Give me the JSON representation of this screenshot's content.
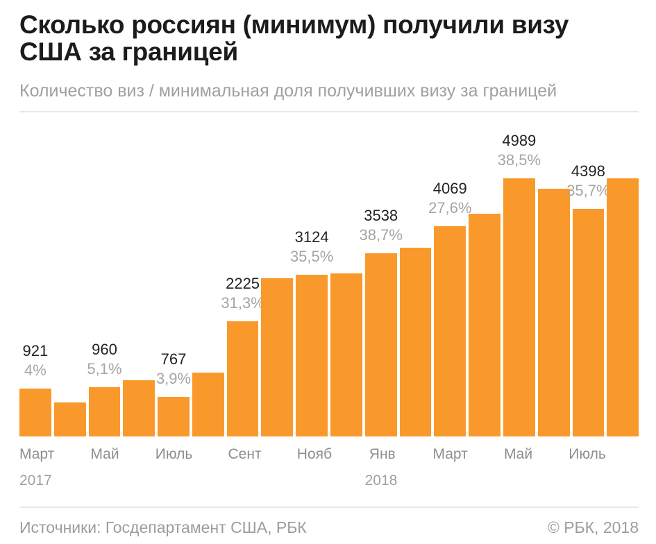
{
  "header": {
    "title": "Сколько россиян (минимум) получили визу США за границей",
    "subtitle": "Количество виз / минимальная доля получивших визу за границей"
  },
  "chart_data": {
    "type": "bar",
    "title": "Сколько россиян (минимум) получили визу США за границей",
    "ylabel": "Количество виз / минимальная доля получивших визу за границей",
    "grid": false,
    "legend": "none",
    "bar_color": "#fa992b",
    "ylim": [
      0,
      5200
    ],
    "x_period": "Март 2017 — Август 2018, помесячно",
    "bars": [
      {
        "tick": "Март",
        "year_tick": "2017",
        "value": 921,
        "value_label": "921",
        "pct_label": "4%",
        "estimated": false
      },
      {
        "tick": "",
        "year_tick": "",
        "value": 660,
        "value_label": null,
        "pct_label": null,
        "estimated": true
      },
      {
        "tick": "Май",
        "year_tick": "",
        "value": 960,
        "value_label": "960",
        "pct_label": "5,1%",
        "estimated": false
      },
      {
        "tick": "",
        "year_tick": "",
        "value": 1090,
        "value_label": null,
        "pct_label": null,
        "estimated": true
      },
      {
        "tick": "Июль",
        "year_tick": "",
        "value": 767,
        "value_label": "767",
        "pct_label": "3,9%",
        "estimated": false
      },
      {
        "tick": "",
        "year_tick": "",
        "value": 1230,
        "value_label": null,
        "pct_label": null,
        "estimated": true
      },
      {
        "tick": "Сент",
        "year_tick": "",
        "value": 2225,
        "value_label": "2225",
        "pct_label": "31,3%",
        "estimated": false
      },
      {
        "tick": "",
        "year_tick": "",
        "value": 3060,
        "value_label": null,
        "pct_label": null,
        "estimated": true
      },
      {
        "tick": "Нояб",
        "year_tick": "",
        "value": 3124,
        "value_label": "3124",
        "pct_label": "35,5%",
        "estimated": false
      },
      {
        "tick": "",
        "year_tick": "",
        "value": 3160,
        "value_label": null,
        "pct_label": null,
        "estimated": true
      },
      {
        "tick": "Янв",
        "year_tick": "2018",
        "value": 3538,
        "value_label": "3538",
        "pct_label": "38,7%",
        "estimated": false
      },
      {
        "tick": "",
        "year_tick": "",
        "value": 3650,
        "value_label": null,
        "pct_label": null,
        "estimated": true
      },
      {
        "tick": "Март",
        "year_tick": "",
        "value": 4069,
        "value_label": "4069",
        "pct_label": "27,6%",
        "estimated": false
      },
      {
        "tick": "",
        "year_tick": "",
        "value": 4310,
        "value_label": null,
        "pct_label": null,
        "estimated": true
      },
      {
        "tick": "Май",
        "year_tick": "",
        "value": 4989,
        "value_label": "4989",
        "pct_label": "38,5%",
        "estimated": false
      },
      {
        "tick": "",
        "year_tick": "",
        "value": 4790,
        "value_label": null,
        "pct_label": null,
        "estimated": true
      },
      {
        "tick": "Июль",
        "year_tick": "",
        "value": 4398,
        "value_label": "4398",
        "pct_label": "35,7%",
        "estimated": false
      },
      {
        "tick": "",
        "year_tick": "",
        "value": 4990,
        "value_label": null,
        "pct_label": null,
        "estimated": true
      }
    ]
  },
  "footer": {
    "sources": "Источники: Госдепартамент США, РБК",
    "copyright": "© РБК, 2018"
  }
}
